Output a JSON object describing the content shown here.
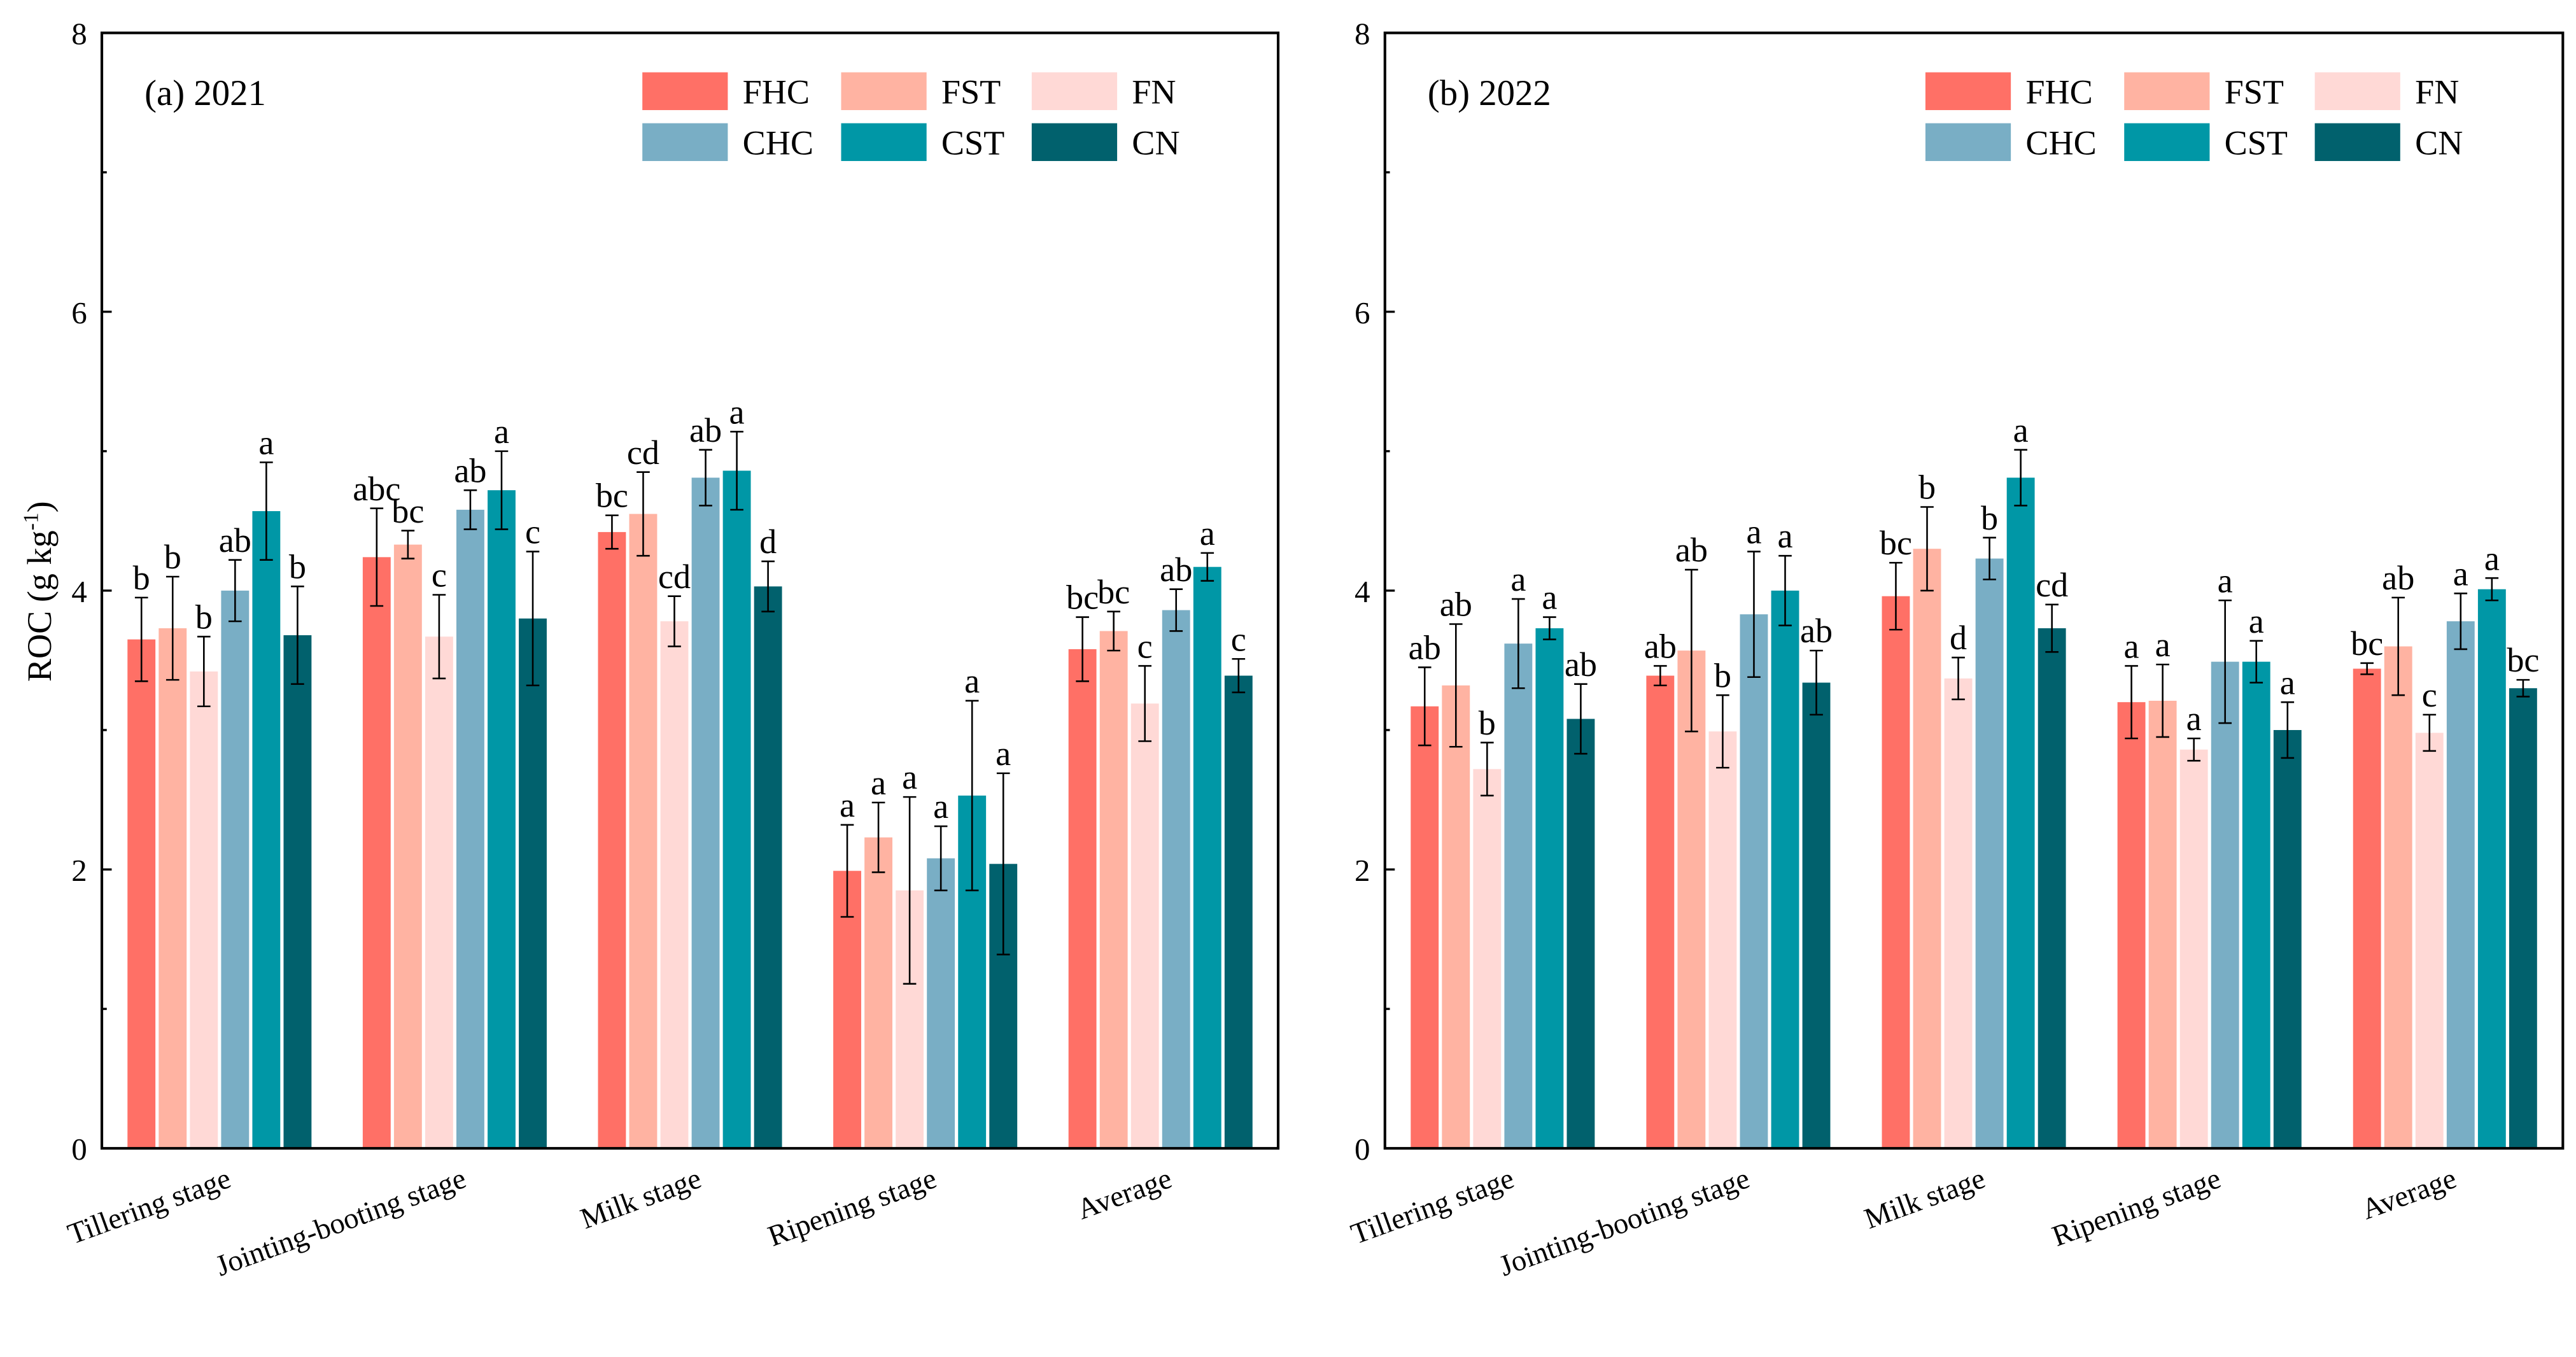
{
  "colors": {
    "FHC": "#FF7066",
    "FST": "#FFB3A2",
    "FN": "#FFD9D6",
    "CHC": "#79AEC5",
    "CST": "#0097A6",
    "CN": "#01616D"
  },
  "chart_data": [
    {
      "type": "bar",
      "title": "(a) 2021",
      "ylabel": "ROC (g kg-1)",
      "ylabel_main": "ROC (g kg",
      "ylabel_sup": "-1",
      "ylabel_end": ")",
      "ylim": [
        0,
        8
      ],
      "yticks": [
        0,
        2,
        4,
        6,
        8
      ],
      "legend": "top-right",
      "categories": [
        "Tillering stage",
        "Jointing-booting stage",
        "Milk stage",
        "Ripening stage",
        "Average"
      ],
      "series": [
        {
          "name": "FHC",
          "values": [
            3.65,
            4.24,
            4.42,
            1.99,
            3.58
          ],
          "errors": [
            0.3,
            0.35,
            0.12,
            0.33,
            0.23
          ],
          "letters": [
            "b",
            "abc",
            "bc",
            "a",
            "bc"
          ]
        },
        {
          "name": "FST",
          "values": [
            3.73,
            4.33,
            4.55,
            2.23,
            3.71
          ],
          "errors": [
            0.37,
            0.1,
            0.3,
            0.25,
            0.14
          ],
          "letters": [
            "b",
            "bc",
            "cd",
            "a",
            "bc"
          ]
        },
        {
          "name": "FN",
          "values": [
            3.42,
            3.67,
            3.78,
            1.85,
            3.19
          ],
          "errors": [
            0.25,
            0.3,
            0.18,
            0.67,
            0.27
          ],
          "letters": [
            "b",
            "c",
            "cd",
            "a",
            "c"
          ]
        },
        {
          "name": "CHC",
          "values": [
            4.0,
            4.58,
            4.81,
            2.08,
            3.86
          ],
          "errors": [
            0.22,
            0.14,
            0.2,
            0.23,
            0.15
          ],
          "letters": [
            "ab",
            "ab",
            "ab",
            "a",
            "ab"
          ]
        },
        {
          "name": "CST",
          "values": [
            4.57,
            4.72,
            4.86,
            2.53,
            4.17
          ],
          "errors": [
            0.35,
            0.28,
            0.28,
            0.68,
            0.1
          ],
          "letters": [
            "a",
            "a",
            "a",
            "a",
            "a"
          ]
        },
        {
          "name": "CN",
          "values": [
            3.68,
            3.8,
            4.03,
            2.04,
            3.39
          ],
          "errors": [
            0.35,
            0.48,
            0.18,
            0.65,
            0.12
          ],
          "letters": [
            "b",
            "c",
            "d",
            "a",
            "c"
          ]
        }
      ]
    },
    {
      "type": "bar",
      "title": "(b) 2022",
      "ylim": [
        0,
        8
      ],
      "yticks": [
        0,
        2,
        4,
        6,
        8
      ],
      "legend": "top-right",
      "categories": [
        "Tillering stage",
        "Jointing-booting stage",
        "Milk stage",
        "Ripening stage",
        "Average"
      ],
      "series": [
        {
          "name": "FHC",
          "values": [
            3.17,
            3.39,
            3.96,
            3.2,
            3.44
          ],
          "errors": [
            0.28,
            0.07,
            0.24,
            0.26,
            0.04
          ],
          "letters": [
            "ab",
            "ab",
            "bc",
            "a",
            "bc"
          ]
        },
        {
          "name": "FST",
          "values": [
            3.32,
            3.57,
            4.3,
            3.21,
            3.6
          ],
          "errors": [
            0.44,
            0.58,
            0.3,
            0.26,
            0.35
          ],
          "letters": [
            "ab",
            "ab",
            "b",
            "a",
            "ab"
          ]
        },
        {
          "name": "FN",
          "values": [
            2.72,
            2.99,
            3.37,
            2.86,
            2.98
          ],
          "errors": [
            0.19,
            0.26,
            0.15,
            0.08,
            0.13
          ],
          "letters": [
            "b",
            "b",
            "d",
            "a",
            "c"
          ]
        },
        {
          "name": "CHC",
          "values": [
            3.62,
            3.83,
            4.23,
            3.49,
            3.78
          ],
          "errors": [
            0.32,
            0.45,
            0.15,
            0.44,
            0.2
          ],
          "letters": [
            "a",
            "a",
            "b",
            "a",
            "a"
          ]
        },
        {
          "name": "CST",
          "values": [
            3.73,
            4.0,
            4.81,
            3.49,
            4.01
          ],
          "errors": [
            0.08,
            0.25,
            0.2,
            0.15,
            0.08
          ],
          "letters": [
            "a",
            "a",
            "a",
            "a",
            "a"
          ]
        },
        {
          "name": "CN",
          "values": [
            3.08,
            3.34,
            3.73,
            3.0,
            3.3
          ],
          "errors": [
            0.25,
            0.23,
            0.17,
            0.2,
            0.06
          ],
          "letters": [
            "ab",
            "ab",
            "cd",
            "a",
            "bc"
          ]
        }
      ]
    }
  ]
}
